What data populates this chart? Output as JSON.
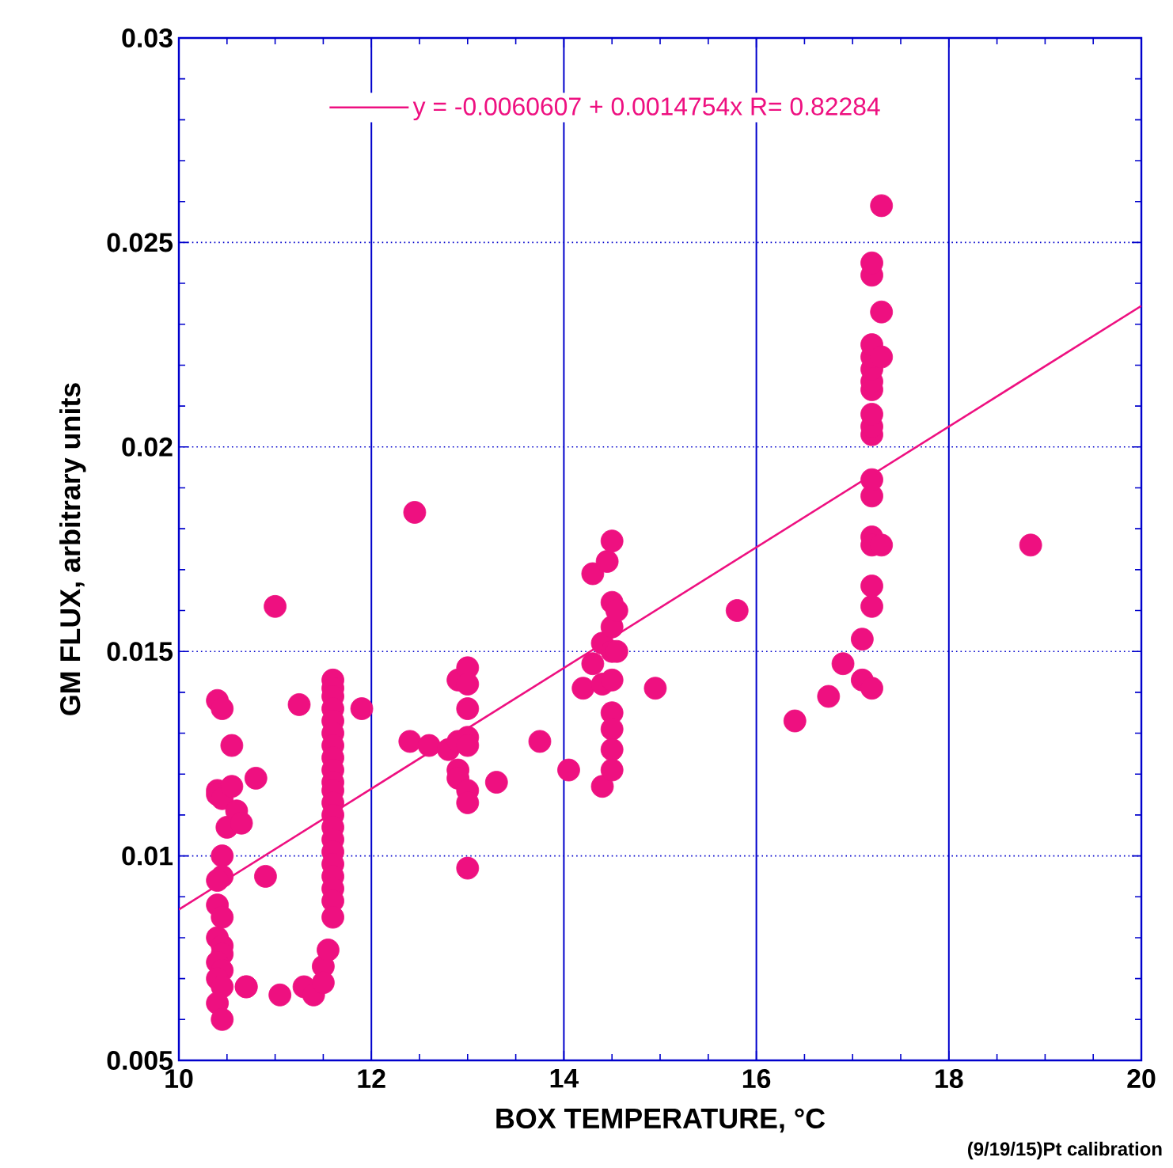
{
  "chart_data": {
    "type": "scatter",
    "xlabel": "BOX TEMPERATURE, °C",
    "ylabel": "GM FLUX, arbitrary units",
    "annotations": [
      "(9/19/15)Pt calibration"
    ],
    "xlim": [
      10,
      20
    ],
    "xticks": [
      10,
      12,
      14,
      16,
      18,
      20
    ],
    "ylim": [
      0.005,
      0.03
    ],
    "yticks": [
      0.005,
      0.01,
      0.015,
      0.02,
      0.025,
      0.03
    ],
    "grid": true,
    "legend": "top",
    "marker": "circle",
    "series": [
      {
        "color": "#ee1080",
        "x": [
          10.4,
          10.45,
          10.4,
          10.4,
          10.45,
          10.45,
          10.45,
          10.4,
          10.4,
          10.45,
          10.4,
          10.45,
          10.45,
          10.4,
          10.45,
          10.4,
          10.45,
          10.4,
          10.45,
          10.55,
          10.55,
          10.5,
          10.6,
          10.65,
          10.7,
          10.8,
          10.9,
          10.7,
          11.0,
          11.05,
          11.25,
          11.3,
          11.4,
          11.5,
          11.5,
          11.55,
          11.9,
          11.6,
          11.6,
          11.6,
          11.6,
          11.6,
          11.6,
          11.6,
          11.6,
          11.6,
          11.6,
          11.6,
          11.6,
          11.6,
          11.6,
          11.6,
          11.6,
          11.6,
          11.6,
          11.6,
          11.6,
          11.6,
          12.4,
          12.45,
          12.6,
          12.8,
          12.9,
          12.9,
          12.9,
          12.9,
          13.0,
          13.0,
          13.0,
          13.0,
          13.0,
          13.0,
          13.0,
          13.0,
          13.3,
          13.75,
          14.05,
          14.2,
          14.3,
          14.3,
          14.4,
          14.4,
          14.4,
          14.45,
          14.5,
          14.5,
          14.5,
          14.5,
          14.5,
          14.5,
          14.5,
          14.5,
          14.5,
          14.55,
          14.55,
          14.95,
          15.8,
          16.4,
          16.75,
          16.9,
          17.1,
          17.1,
          17.2,
          17.2,
          17.2,
          17.2,
          17.2,
          17.2,
          17.2,
          17.2,
          17.2,
          17.2,
          17.2,
          17.2,
          17.2,
          17.2,
          17.2,
          17.2,
          17.2,
          17.3,
          17.3,
          17.3,
          17.3,
          18.85
        ],
        "values": [
          0.0138,
          0.0136,
          0.0116,
          0.0115,
          0.0114,
          0.01,
          0.0095,
          0.0094,
          0.0088,
          0.0085,
          0.008,
          0.0078,
          0.0076,
          0.0074,
          0.0072,
          0.007,
          0.0068,
          0.0064,
          0.006,
          0.0117,
          0.0127,
          0.0107,
          0.0111,
          0.0108,
          0.0068,
          0.0119,
          0.0095,
          0.0068,
          0.0161,
          0.0066,
          0.0137,
          0.0068,
          0.0066,
          0.0073,
          0.0069,
          0.0077,
          0.0136,
          0.0143,
          0.0141,
          0.0139,
          0.0136,
          0.0133,
          0.013,
          0.0127,
          0.0124,
          0.0121,
          0.0118,
          0.0116,
          0.0113,
          0.011,
          0.0107,
          0.0104,
          0.0101,
          0.0098,
          0.0095,
          0.0092,
          0.0089,
          0.0085,
          0.0128,
          0.0184,
          0.0127,
          0.0126,
          0.0143,
          0.0128,
          0.0121,
          0.0119,
          0.0146,
          0.0142,
          0.0136,
          0.0129,
          0.0127,
          0.0116,
          0.0113,
          0.0097,
          0.0118,
          0.0128,
          0.0121,
          0.0141,
          0.0147,
          0.0169,
          0.0142,
          0.0117,
          0.0152,
          0.0172,
          0.0177,
          0.0162,
          0.0156,
          0.015,
          0.0143,
          0.0135,
          0.0131,
          0.0126,
          0.0121,
          0.016,
          0.015,
          0.0141,
          0.016,
          0.0133,
          0.0139,
          0.0147,
          0.0153,
          0.0143,
          0.0141,
          0.0161,
          0.0166,
          0.0178,
          0.0176,
          0.0188,
          0.0192,
          0.0203,
          0.0205,
          0.0208,
          0.0214,
          0.0216,
          0.0219,
          0.0222,
          0.0225,
          0.0242,
          0.0245,
          0.0259,
          0.0233,
          0.0222,
          0.0176,
          0.0176
        ]
      },
      {
        "type": "line",
        "name": "y = -0.0060607 + 0.0014754x   R= 0.82284",
        "color": "#ee1080",
        "marker": "none",
        "x": [
          10,
          20
        ],
        "values": [
          0.00869,
          0.02345
        ]
      }
    ]
  }
}
